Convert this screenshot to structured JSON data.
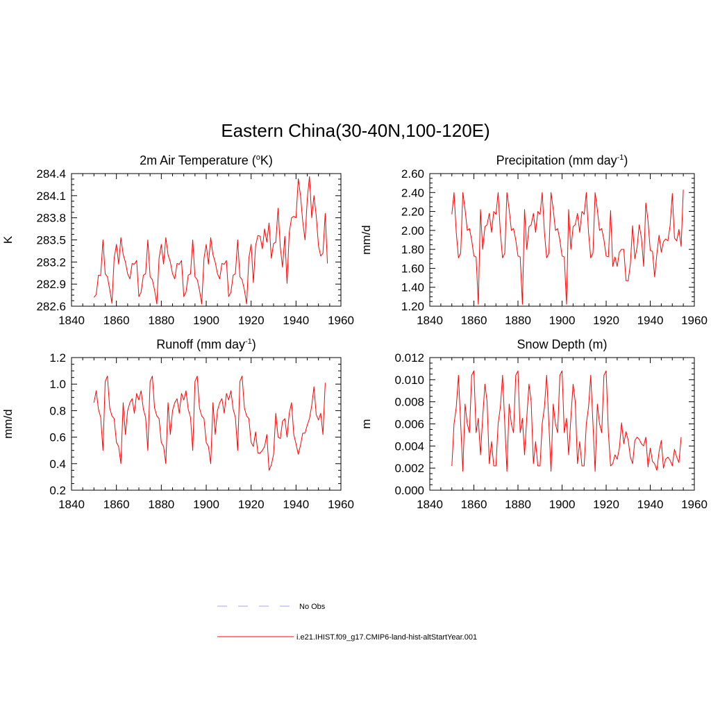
{
  "title": "Eastern China(30-40N,100-120E)",
  "legend": [
    {
      "label": "No Obs",
      "color": "#a0a0ff",
      "dash": true
    },
    {
      "label": "i.e21.IHIST.f09_g17.CMIP6-land-hist-altStartYear.001",
      "color": "#ff0000",
      "dash": false
    }
  ],
  "chart_data": [
    {
      "type": "line",
      "title": "2m Air Temperature (",
      "title_sup": "o",
      "title_post": "K)",
      "ylabel": "K",
      "xlim": [
        1840,
        1960
      ],
      "ylim": [
        282.6,
        284.4
      ],
      "xticks": [
        1840,
        1860,
        1880,
        1900,
        1920,
        1940,
        1960
      ],
      "xtick_labels": [
        "1840",
        "1860",
        "1880",
        "1900",
        "1920",
        "1940",
        "1960"
      ],
      "yticks": [
        282.6,
        282.9,
        283.2,
        283.5,
        283.8,
        284.1,
        284.4
      ],
      "ytick_labels": [
        "282.6",
        "282.9",
        "283.2",
        "283.5",
        "283.8",
        "284.1",
        "284.4"
      ],
      "series": [
        {
          "color": "#ff0000",
          "x_start": 1850,
          "values": [
            282.72,
            282.76,
            283.02,
            283.02,
            283.5,
            283.04,
            283.0,
            282.83,
            282.64,
            283.25,
            283.44,
            283.17,
            283.53,
            283.3,
            283.2,
            283.04,
            282.97,
            283.18,
            283.17,
            283.22,
            282.73,
            282.79,
            283.02,
            283.04,
            283.5,
            283.0,
            282.96,
            282.82,
            282.63,
            283.25,
            283.44,
            283.17,
            283.53,
            283.3,
            283.2,
            283.04,
            282.97,
            283.18,
            283.17,
            283.22,
            282.73,
            282.79,
            283.02,
            283.04,
            283.5,
            283.0,
            282.96,
            282.82,
            282.63,
            283.25,
            283.44,
            283.17,
            283.53,
            283.3,
            283.2,
            283.04,
            282.97,
            283.18,
            283.17,
            283.22,
            282.73,
            282.79,
            283.02,
            283.04,
            283.5,
            283.0,
            282.96,
            282.82,
            282.63,
            283.25,
            283.44,
            282.92,
            283.42,
            283.56,
            283.55,
            283.38,
            283.65,
            283.47,
            283.73,
            283.25,
            283.45,
            283.47,
            283.93,
            283.4,
            283.13,
            283.55,
            282.91,
            283.6,
            283.8,
            283.82,
            283.8,
            284.33,
            284.1,
            283.75,
            283.5,
            284.05,
            284.36,
            283.8,
            284.1,
            283.83,
            283.42,
            283.28,
            283.32,
            283.86,
            283.18
          ]
        }
      ]
    },
    {
      "type": "line",
      "title": "Precipitation (mm day",
      "title_sup": "-1",
      "title_post": ")",
      "ylabel": "mm/d",
      "xlim": [
        1840,
        1960
      ],
      "ylim": [
        1.2,
        2.6
      ],
      "xticks": [
        1840,
        1860,
        1880,
        1900,
        1920,
        1940,
        1960
      ],
      "xtick_labels": [
        "1840",
        "1860",
        "1880",
        "1900",
        "1920",
        "1940",
        "1960"
      ],
      "yticks": [
        1.2,
        1.4,
        1.6,
        1.8,
        2.0,
        2.2,
        2.4,
        2.6
      ],
      "ytick_labels": [
        "1.20",
        "1.40",
        "1.60",
        "1.80",
        "2.00",
        "2.20",
        "2.40",
        "2.60"
      ],
      "series": [
        {
          "color": "#ff0000",
          "x_start": 1850,
          "values": [
            2.17,
            2.4,
            1.98,
            1.71,
            1.76,
            2.4,
            2.22,
            2.0,
            2.02,
            1.9,
            1.73,
            1.72,
            1.22,
            2.22,
            1.8,
            2.04,
            2.06,
            2.18,
            1.98,
            2.2,
            2.17,
            2.4,
            1.98,
            1.71,
            1.76,
            2.4,
            2.22,
            2.0,
            2.02,
            1.9,
            1.73,
            1.72,
            1.22,
            2.22,
            1.8,
            2.04,
            2.06,
            2.18,
            1.98,
            2.2,
            2.17,
            2.4,
            1.98,
            1.71,
            1.76,
            2.4,
            2.22,
            2.0,
            2.02,
            1.9,
            1.73,
            1.72,
            1.22,
            2.22,
            1.8,
            2.04,
            2.06,
            2.18,
            1.98,
            2.2,
            2.17,
            2.4,
            1.98,
            1.71,
            1.76,
            2.4,
            2.22,
            2.0,
            2.02,
            1.9,
            1.73,
            1.72,
            2.21,
            1.62,
            1.72,
            1.62,
            1.77,
            1.8,
            1.8,
            1.47,
            1.47,
            1.65,
            2.05,
            1.7,
            1.82,
            2.06,
            1.92,
            1.62,
            2.29,
            2.1,
            1.79,
            1.78,
            1.51,
            1.75,
            1.95,
            1.77,
            1.88,
            1.91,
            1.89,
            2.05,
            2.39,
            1.92,
            1.89,
            2.01,
            1.83,
            2.43
          ]
        }
      ]
    },
    {
      "type": "line",
      "title": "Runoff (mm day",
      "title_sup": "-1",
      "title_post": ")",
      "ylabel": "mm/d",
      "xlim": [
        1840,
        1960
      ],
      "ylim": [
        0.2,
        1.2
      ],
      "xticks": [
        1840,
        1860,
        1880,
        1900,
        1920,
        1940,
        1960
      ],
      "xtick_labels": [
        "1840",
        "1860",
        "1880",
        "1900",
        "1920",
        "1940",
        "1960"
      ],
      "yticks": [
        0.2,
        0.4,
        0.6,
        0.8,
        1.0,
        1.2
      ],
      "ytick_labels": [
        "0.2",
        "0.4",
        "0.6",
        "0.8",
        "1.0",
        "1.2"
      ],
      "series": [
        {
          "color": "#ff0000",
          "x_start": 1850,
          "values": [
            0.86,
            0.95,
            0.81,
            0.75,
            0.5,
            1.02,
            1.06,
            0.82,
            0.76,
            0.74,
            0.56,
            0.53,
            0.4,
            0.86,
            0.62,
            0.8,
            0.86,
            0.89,
            0.78,
            0.93,
            0.88,
            0.95,
            0.81,
            0.75,
            0.5,
            1.02,
            1.06,
            0.82,
            0.76,
            0.74,
            0.56,
            0.53,
            0.4,
            0.86,
            0.62,
            0.8,
            0.86,
            0.89,
            0.78,
            0.93,
            0.88,
            0.95,
            0.81,
            0.75,
            0.5,
            1.02,
            1.06,
            0.82,
            0.76,
            0.74,
            0.56,
            0.53,
            0.4,
            0.86,
            0.62,
            0.8,
            0.86,
            0.89,
            0.78,
            0.93,
            0.88,
            0.95,
            0.81,
            0.75,
            0.5,
            1.02,
            1.06,
            0.82,
            0.76,
            0.74,
            0.56,
            0.53,
            0.64,
            0.48,
            0.48,
            0.5,
            0.53,
            0.62,
            0.35,
            0.39,
            0.47,
            0.78,
            0.6,
            0.59,
            0.72,
            0.74,
            0.6,
            0.78,
            0.86,
            0.62,
            0.55,
            0.47,
            0.54,
            0.63,
            0.63,
            0.69,
            0.74,
            0.84,
            0.98,
            0.77,
            0.73,
            0.78,
            0.62,
            1.01
          ]
        }
      ]
    },
    {
      "type": "line",
      "title": "Snow Depth (m)",
      "title_sup": "",
      "title_post": "",
      "ylabel": "m",
      "xlim": [
        1840,
        1960
      ],
      "ylim": [
        0.0,
        0.012
      ],
      "xticks": [
        1840,
        1860,
        1880,
        1900,
        1920,
        1940,
        1960
      ],
      "xtick_labels": [
        "1840",
        "1860",
        "1880",
        "1900",
        "1920",
        "1940",
        "1960"
      ],
      "yticks": [
        0.0,
        0.002,
        0.004,
        0.006,
        0.008,
        0.01,
        0.012
      ],
      "ytick_labels": [
        "0.000",
        "0.002",
        "0.004",
        "0.006",
        "0.008",
        "0.010",
        "0.012"
      ],
      "series": [
        {
          "color": "#ff0000",
          "x_start": 1850,
          "values": [
            0.0022,
            0.006,
            0.0075,
            0.0104,
            0.006,
            0.0017,
            0.0078,
            0.006,
            0.0052,
            0.0104,
            0.0108,
            0.0052,
            0.0065,
            0.0032,
            0.0066,
            0.0096,
            0.008,
            0.0024,
            0.0044,
            0.0022,
            0.0022,
            0.006,
            0.0075,
            0.0104,
            0.006,
            0.0017,
            0.0078,
            0.006,
            0.0052,
            0.0104,
            0.0108,
            0.0052,
            0.0065,
            0.0032,
            0.0066,
            0.0096,
            0.008,
            0.0024,
            0.0044,
            0.0022,
            0.0022,
            0.006,
            0.0075,
            0.0104,
            0.006,
            0.0017,
            0.0078,
            0.006,
            0.0052,
            0.0104,
            0.0108,
            0.0052,
            0.0065,
            0.0032,
            0.0066,
            0.0096,
            0.008,
            0.0024,
            0.0044,
            0.0022,
            0.0022,
            0.006,
            0.0075,
            0.0104,
            0.006,
            0.0017,
            0.0078,
            0.006,
            0.0052,
            0.0104,
            0.0108,
            0.0052,
            0.0022,
            0.0024,
            0.0032,
            0.0028,
            0.0038,
            0.0061,
            0.0042,
            0.0053,
            0.0045,
            0.003,
            0.0024,
            0.0045,
            0.0048,
            0.0046,
            0.0042,
            0.004,
            0.0048,
            0.0021,
            0.0038,
            0.0026,
            0.0024,
            0.0018,
            0.0035,
            0.0045,
            0.002,
            0.0028,
            0.003,
            0.0027,
            0.0022,
            0.0037,
            0.003,
            0.0025,
            0.0048
          ]
        }
      ]
    }
  ]
}
